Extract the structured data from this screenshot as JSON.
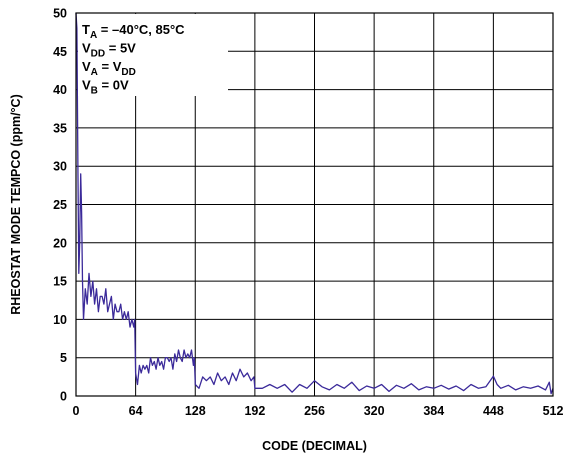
{
  "chart_data": {
    "type": "line",
    "title": "",
    "xlabel": "CODE (DECIMAL)",
    "ylabel": "RHEOSTAT MODE TEMPCO (ppm/°C)",
    "xlim": [
      0,
      512
    ],
    "ylim": [
      0,
      50
    ],
    "xticks": [
      0,
      64,
      128,
      192,
      256,
      320,
      384,
      448,
      512
    ],
    "yticks": [
      0,
      5,
      10,
      15,
      20,
      25,
      30,
      35,
      40,
      45,
      50
    ],
    "grid": true,
    "line_color": "#3b2a9a",
    "annotation": [
      {
        "main": "T",
        "sub": "A",
        "rest": " = –40°C, 85°C"
      },
      {
        "main": "V",
        "sub": "DD",
        "rest": " = 5V"
      },
      {
        "main": "V",
        "sub": "A",
        "rest": " = V",
        "sub2": "DD"
      },
      {
        "main": "V",
        "sub": "B",
        "rest": " = 0V"
      }
    ],
    "series": [
      {
        "x": [
          0,
          1,
          2,
          3,
          4,
          5,
          6,
          7,
          8,
          10,
          12,
          14,
          16,
          18,
          20,
          22,
          24,
          26,
          28,
          30,
          32,
          34,
          36,
          38,
          40,
          42,
          44,
          46,
          48,
          50,
          52,
          54,
          56,
          58,
          60,
          62,
          63,
          64,
          66,
          68,
          70,
          72,
          74,
          76,
          78,
          80,
          82,
          84,
          86,
          88,
          90,
          92,
          94,
          96,
          98,
          100,
          102,
          104,
          106,
          108,
          110,
          112,
          114,
          116,
          118,
          120,
          122,
          124,
          126,
          127,
          128,
          132,
          136,
          140,
          144,
          148,
          152,
          156,
          160,
          164,
          168,
          172,
          176,
          180,
          184,
          188,
          191,
          192,
          200,
          208,
          216,
          224,
          232,
          240,
          248,
          256,
          264,
          272,
          280,
          288,
          296,
          304,
          312,
          320,
          328,
          336,
          344,
          352,
          360,
          368,
          376,
          384,
          392,
          400,
          408,
          416,
          424,
          432,
          440,
          448,
          452,
          456,
          464,
          472,
          480,
          488,
          496,
          504,
          508,
          510,
          512
        ],
        "y": [
          50,
          48,
          30,
          16,
          20,
          29,
          24,
          15,
          10,
          14,
          12,
          16,
          13,
          15,
          12,
          14,
          11,
          13,
          13,
          12,
          14,
          11,
          12,
          13,
          10,
          12,
          11,
          11,
          12,
          10,
          11,
          10,
          11,
          9,
          10,
          9,
          10,
          3,
          1.5,
          4,
          3,
          4,
          3.5,
          4,
          3,
          5,
          4,
          4.5,
          3.5,
          5,
          4,
          4.5,
          3.5,
          5,
          5,
          4.5,
          5,
          3.5,
          5.5,
          4.5,
          6,
          5,
          4.5,
          6,
          5,
          5.5,
          5,
          6,
          4,
          5,
          1.5,
          1,
          2.5,
          2,
          2.5,
          1.5,
          3,
          2,
          2.5,
          1.5,
          3,
          2,
          3.5,
          2.5,
          3,
          2,
          2.5,
          1,
          1,
          1.5,
          1,
          1.5,
          0.5,
          1.5,
          1,
          2,
          1.2,
          0.8,
          1.5,
          1,
          1.8,
          0.7,
          1.3,
          1,
          1.5,
          0.6,
          1.4,
          1,
          1.6,
          0.8,
          1.2,
          1,
          1.4,
          0.9,
          1.3,
          0.7,
          1.5,
          1,
          1.2,
          2.6,
          1.5,
          1,
          1.4,
          0.8,
          1.2,
          1,
          1.3,
          0.8,
          1.8,
          0.3,
          1
        ]
      }
    ]
  }
}
